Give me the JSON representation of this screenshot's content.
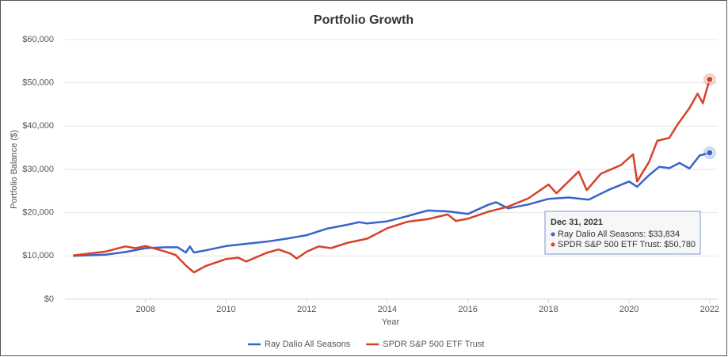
{
  "chart_data": {
    "type": "line",
    "title": "Portfolio Growth",
    "x_label": "Year",
    "y_label": "Portfolio Balance ($)",
    "xlim": [
      2006,
      2022.2
    ],
    "xticks": [
      2008,
      2010,
      2012,
      2014,
      2016,
      2018,
      2020,
      2022
    ],
    "ylim": [
      0,
      60000
    ],
    "yticks": [
      {
        "value": 0,
        "label": "$0"
      },
      {
        "value": 10000,
        "label": "$10,000"
      },
      {
        "value": 20000,
        "label": "$20,000"
      },
      {
        "value": 30000,
        "label": "$30,000"
      },
      {
        "value": 40000,
        "label": "$40,000"
      },
      {
        "value": 50000,
        "label": "$50,000"
      },
      {
        "value": 60000,
        "label": "$60,000"
      }
    ],
    "grid": true,
    "series": [
      {
        "name": "Ray Dalio All Seasons",
        "color": "#3a63c9",
        "x": [
          2006.2,
          2007.0,
          2007.5,
          2008.0,
          2008.5,
          2008.8,
          2009.0,
          2009.1,
          2009.2,
          2009.5,
          2010.0,
          2010.5,
          2011.0,
          2011.5,
          2012.0,
          2012.5,
          2013.0,
          2013.3,
          2013.5,
          2014.0,
          2014.5,
          2015.0,
          2015.5,
          2016.0,
          2016.5,
          2016.7,
          2017.0,
          2017.5,
          2018.0,
          2018.5,
          2019.0,
          2019.5,
          2020.0,
          2020.2,
          2020.5,
          2020.75,
          2021.0,
          2021.25,
          2021.5,
          2021.75,
          2022.0
        ],
        "values": [
          10000,
          10300,
          10900,
          11800,
          12000,
          12000,
          10800,
          12200,
          10800,
          11300,
          12300,
          12800,
          13300,
          14000,
          14800,
          16300,
          17200,
          17800,
          17500,
          18000,
          19200,
          20500,
          20300,
          19700,
          21800,
          22400,
          21000,
          21900,
          23200,
          23500,
          23000,
          25300,
          27200,
          26000,
          28700,
          30600,
          30300,
          31500,
          30200,
          33200,
          33834
        ]
      },
      {
        "name": "SPDR S&P 500 ETF Trust",
        "color": "#d64227",
        "x": [
          2006.2,
          2007.0,
          2007.5,
          2007.75,
          2008.0,
          2008.5,
          2008.75,
          2009.0,
          2009.2,
          2009.5,
          2010.0,
          2010.3,
          2010.5,
          2011.0,
          2011.3,
          2011.6,
          2011.75,
          2012.0,
          2012.3,
          2012.6,
          2013.0,
          2013.5,
          2014.0,
          2014.5,
          2015.0,
          2015.5,
          2015.7,
          2016.0,
          2016.5,
          2017.0,
          2017.5,
          2018.0,
          2018.2,
          2018.75,
          2018.95,
          2019.3,
          2019.8,
          2020.1,
          2020.2,
          2020.5,
          2020.7,
          2021.0,
          2021.2,
          2021.5,
          2021.7,
          2021.83,
          2022.0
        ],
        "values": [
          10100,
          11000,
          12200,
          11800,
          12300,
          11000,
          10200,
          7800,
          6200,
          7700,
          9300,
          9600,
          8700,
          10700,
          11500,
          10500,
          9400,
          11000,
          12200,
          11800,
          13000,
          14000,
          16400,
          17900,
          18500,
          19600,
          18100,
          18600,
          20200,
          21400,
          23300,
          26500,
          24500,
          29500,
          25200,
          29000,
          31000,
          33500,
          27200,
          31800,
          36600,
          37300,
          40300,
          44200,
          47500,
          45300,
          50780
        ]
      }
    ],
    "tooltip": {
      "title": "Dec 31, 2021",
      "items": [
        "Ray Dalio All Seasons: $33,834",
        "SPDR S&P 500 ETF Trust: $50,780"
      ]
    }
  }
}
